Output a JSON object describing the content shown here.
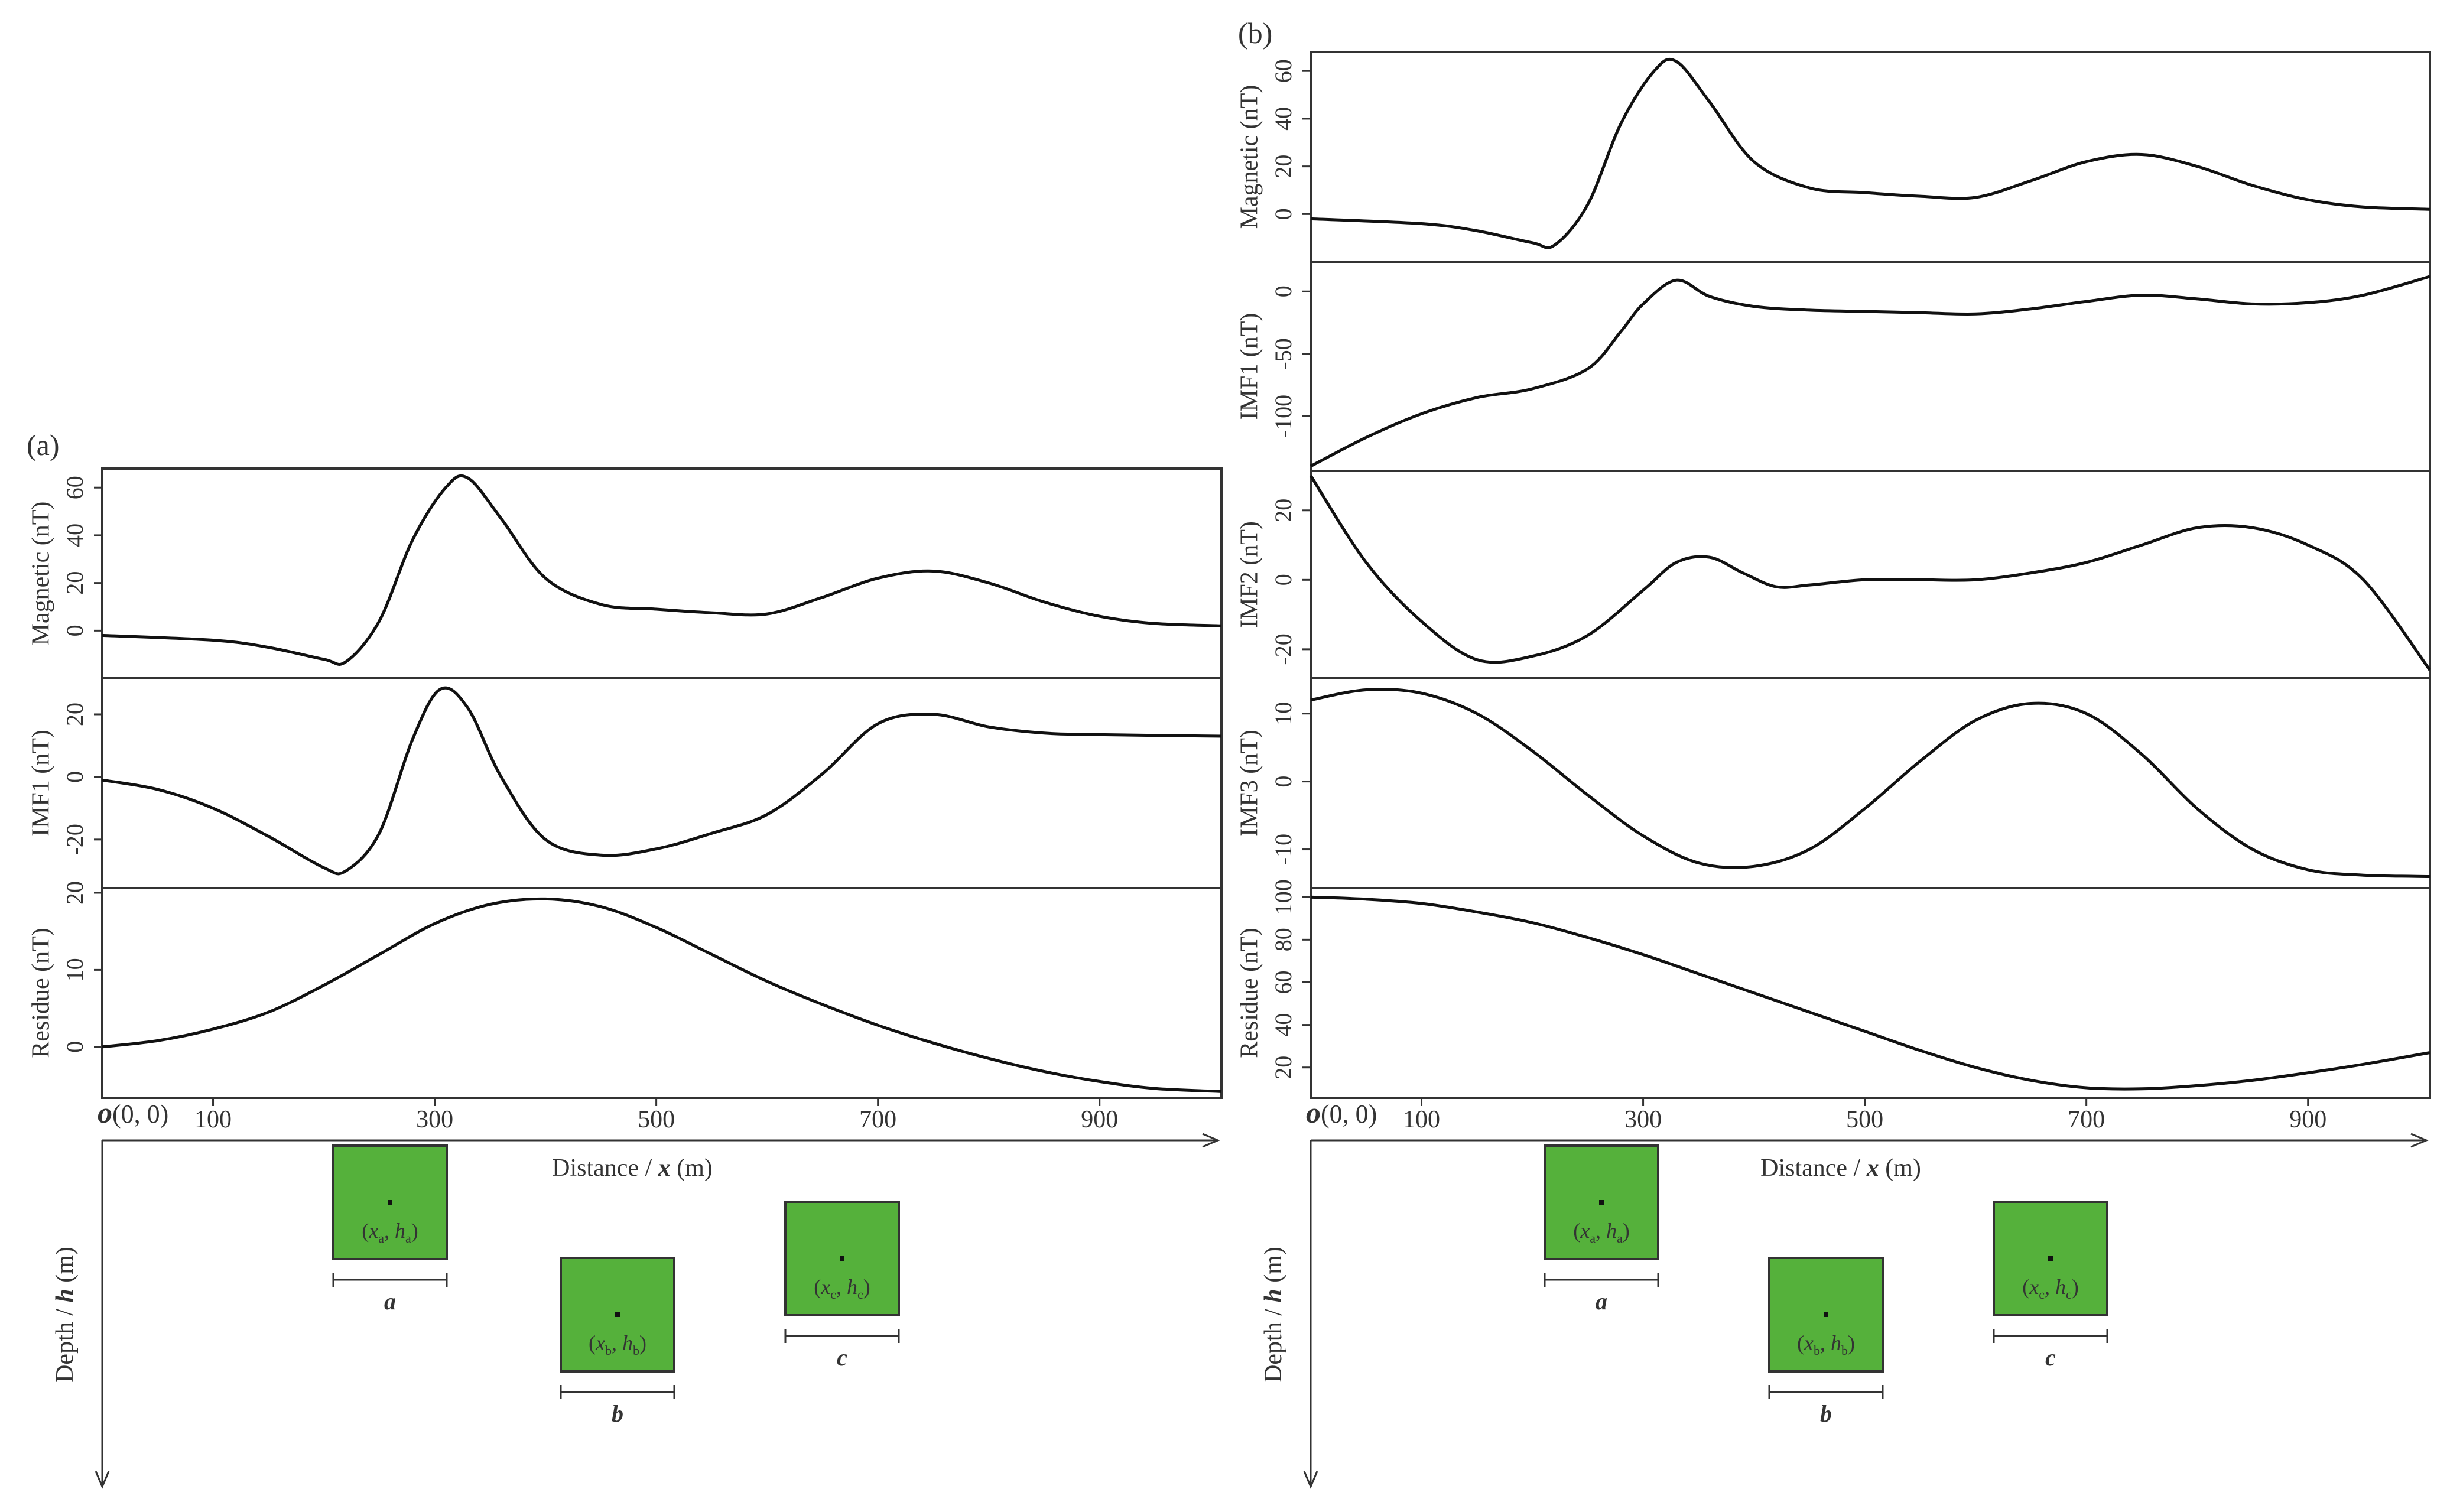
{
  "colors": {
    "line": "#111111",
    "box": "#333333",
    "body_fill": "#55b13b",
    "text": "#333333"
  },
  "axis": {
    "origin_label": "(0, 0)",
    "origin_letter": "o",
    "x_label_prefix": "Distance / ",
    "x_label_var": "x",
    "x_label_unit": " (m)",
    "depth_label_prefix": "Depth / ",
    "depth_label_var": "h",
    "depth_label_unit": " (m)",
    "x_ticks": [
      "100",
      "300",
      "500",
      "700",
      "900"
    ]
  },
  "chart_data": [
    {
      "type": "line",
      "id": "a",
      "title": "(a)",
      "xlabel": "Distance / x (m)",
      "xlim": [
        0,
        1010
      ],
      "panels": [
        {
          "ylabel": "Magnetic (nT)",
          "ylim": [
            -18,
            66
          ],
          "yticks": [
            "0",
            "20",
            "40",
            "60"
          ],
          "x": [
            0,
            100,
            150,
            200,
            220,
            250,
            280,
            310,
            330,
            360,
            400,
            450,
            500,
            550,
            600,
            650,
            700,
            750,
            800,
            850,
            900,
            950,
            1010
          ],
          "values": [
            -2,
            -4,
            -7,
            -12,
            -13,
            4,
            38,
            60,
            64,
            47,
            22,
            11,
            9,
            7.5,
            7,
            14,
            22,
            25,
            20,
            12,
            6,
            3,
            2
          ]
        },
        {
          "ylabel": "IMF1 (nT)",
          "ylim": [
            -34,
            30
          ],
          "yticks": [
            "-20",
            "0",
            "20"
          ],
          "x": [
            0,
            50,
            100,
            150,
            200,
            220,
            250,
            280,
            305,
            330,
            360,
            400,
            450,
            500,
            550,
            600,
            650,
            700,
            750,
            800,
            850,
            900,
            1010
          ],
          "values": [
            -1,
            -4,
            -10,
            -19,
            -29,
            -30,
            -18,
            12,
            28,
            22,
            0,
            -20,
            -25,
            -23,
            -18,
            -12,
            1,
            17,
            20,
            16,
            14,
            13.5,
            13
          ]
        },
        {
          "ylabel": "Residue (nT)",
          "ylim": [
            -6,
            20
          ],
          "yticks": [
            "0",
            "10",
            "20"
          ],
          "x": [
            0,
            50,
            100,
            150,
            200,
            250,
            300,
            350,
            400,
            450,
            500,
            550,
            600,
            650,
            700,
            750,
            800,
            850,
            900,
            950,
            1010
          ],
          "values": [
            0,
            0.8,
            2.3,
            4.5,
            8,
            12,
            16,
            18.5,
            19.2,
            18.2,
            15.5,
            12,
            8.5,
            5.5,
            2.8,
            0.5,
            -1.5,
            -3.2,
            -4.5,
            -5.4,
            -5.8
          ]
        }
      ],
      "bodies": [
        {
          "name": "a",
          "coord_x": "x",
          "coord_x_sub": "a",
          "coord_h": "h",
          "coord_h_sub": "a"
        },
        {
          "name": "b",
          "coord_x": "x",
          "coord_x_sub": "b",
          "coord_h": "h",
          "coord_h_sub": "b"
        },
        {
          "name": "c",
          "coord_x": "x",
          "coord_x_sub": "c",
          "coord_h": "h",
          "coord_h_sub": "c"
        }
      ]
    },
    {
      "type": "line",
      "id": "b",
      "title": "(b)",
      "xlabel": "Distance / x (m)",
      "xlim": [
        0,
        1010
      ],
      "panels": [
        {
          "ylabel": "Magnetic (nT)",
          "ylim": [
            -18,
            66
          ],
          "yticks": [
            "0",
            "20",
            "40",
            "60"
          ],
          "x": [
            0,
            100,
            150,
            200,
            220,
            250,
            280,
            310,
            330,
            360,
            400,
            450,
            500,
            550,
            600,
            650,
            700,
            750,
            800,
            850,
            900,
            950,
            1010
          ],
          "values": [
            -2,
            -4,
            -7,
            -12,
            -13,
            4,
            38,
            60,
            64,
            47,
            22,
            11,
            9,
            7.5,
            7,
            14,
            22,
            25,
            20,
            12,
            6,
            3,
            2
          ]
        },
        {
          "ylabel": "IMF1 (nT)",
          "ylim": [
            -140,
            20
          ],
          "yticks": [
            "-100",
            "-50",
            "0"
          ],
          "x": [
            0,
            50,
            100,
            150,
            200,
            250,
            280,
            300,
            330,
            360,
            400,
            450,
            500,
            550,
            600,
            650,
            700,
            750,
            800,
            850,
            900,
            950,
            1010
          ],
          "values": [
            -140,
            -117,
            -98,
            -85,
            -78,
            -62,
            -32,
            -10,
            9,
            -4,
            -12,
            -15,
            -16,
            -17,
            -18,
            -14,
            -8,
            -3,
            -6,
            -10,
            -9,
            -3,
            12
          ]
        },
        {
          "ylabel": "IMF2 (nT)",
          "ylim": [
            -27,
            30
          ],
          "yticks": [
            "-20",
            "0",
            "20"
          ],
          "x": [
            0,
            50,
            100,
            150,
            200,
            250,
            300,
            330,
            360,
            390,
            420,
            450,
            500,
            550,
            600,
            650,
            700,
            750,
            800,
            850,
            900,
            950,
            1010
          ],
          "values": [
            30,
            5,
            -12,
            -23,
            -22,
            -16,
            -3,
            5,
            6.5,
            2,
            -2,
            -1.5,
            0,
            0,
            0,
            2,
            5,
            10,
            15,
            15,
            10,
            0,
            -26
          ]
        },
        {
          "ylabel": "IMF3 (nT)",
          "ylim": [
            -15,
            14.5
          ],
          "yticks": [
            "-10",
            "0",
            "10"
          ],
          "x": [
            0,
            50,
            100,
            150,
            200,
            250,
            300,
            350,
            400,
            450,
            500,
            550,
            600,
            650,
            700,
            750,
            800,
            850,
            900,
            950,
            1010
          ],
          "values": [
            12,
            13.5,
            13,
            10,
            4.5,
            -2,
            -8,
            -12,
            -12.5,
            -10,
            -4,
            3,
            9,
            11.5,
            10,
            4,
            -4,
            -10,
            -13,
            -13.8,
            -14
          ]
        },
        {
          "ylabel": "Residue (nT)",
          "ylim": [
            8,
            102
          ],
          "yticks": [
            "20",
            "40",
            "60",
            "80",
            "100"
          ],
          "x": [
            0,
            50,
            100,
            150,
            200,
            250,
            300,
            350,
            400,
            450,
            500,
            550,
            600,
            650,
            700,
            750,
            800,
            850,
            900,
            950,
            1010
          ],
          "values": [
            100,
            99,
            97,
            93,
            88,
            81,
            73,
            64,
            55,
            46,
            37,
            28,
            20,
            14,
            10.5,
            10,
            11.5,
            14,
            17.5,
            21.5,
            27
          ]
        }
      ],
      "bodies": [
        {
          "name": "a",
          "coord_x": "x",
          "coord_x_sub": "a",
          "coord_h": "h",
          "coord_h_sub": "a"
        },
        {
          "name": "b",
          "coord_x": "x",
          "coord_x_sub": "b",
          "coord_h": "h",
          "coord_h_sub": "b"
        },
        {
          "name": "c",
          "coord_x": "x",
          "coord_x_sub": "c",
          "coord_h": "h",
          "coord_h_sub": "c"
        }
      ]
    }
  ]
}
